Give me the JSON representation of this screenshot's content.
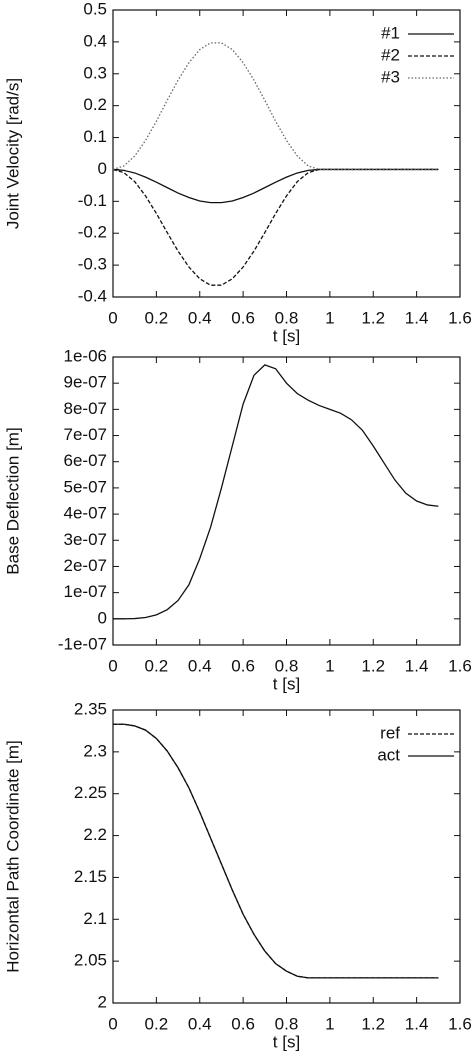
{
  "chart_data": [
    {
      "type": "line",
      "xlabel": "t [s]",
      "ylabel": "Joint Velocity [rad/s]",
      "x": [
        0,
        0.05,
        0.1,
        0.15,
        0.2,
        0.25,
        0.3,
        0.35,
        0.4,
        0.45,
        0.5,
        0.55,
        0.6,
        0.65,
        0.7,
        0.75,
        0.8,
        0.85,
        0.9,
        0.95,
        1.0,
        1.05,
        1.1,
        1.15,
        1.2,
        1.25,
        1.3,
        1.35,
        1.4,
        1.45,
        1.5
      ],
      "series": [
        {
          "name": "#1",
          "color": "#111111",
          "dash": "solid",
          "values": [
            0,
            -0.003,
            -0.011,
            -0.024,
            -0.04,
            -0.057,
            -0.074,
            -0.088,
            -0.099,
            -0.104,
            -0.104,
            -0.099,
            -0.088,
            -0.074,
            -0.057,
            -0.04,
            -0.024,
            -0.011,
            -0.003,
            0,
            0,
            0,
            0,
            0,
            0,
            0,
            0,
            0,
            0,
            0,
            0
          ]
        },
        {
          "name": "#2",
          "color": "#111111",
          "dash": "dashed",
          "values": [
            0,
            -0.01,
            -0.038,
            -0.083,
            -0.138,
            -0.198,
            -0.256,
            -0.306,
            -0.343,
            -0.363,
            -0.363,
            -0.343,
            -0.306,
            -0.256,
            -0.198,
            -0.138,
            -0.083,
            -0.038,
            -0.01,
            0,
            0,
            0,
            0,
            0,
            0,
            0,
            0,
            0,
            0,
            0,
            0
          ]
        },
        {
          "name": "#3",
          "color": "#666666",
          "dash": "dotted",
          "values": [
            0,
            0.011,
            0.042,
            0.091,
            0.151,
            0.217,
            0.28,
            0.335,
            0.376,
            0.397,
            0.397,
            0.376,
            0.335,
            0.28,
            0.217,
            0.151,
            0.091,
            0.042,
            0.011,
            0,
            0,
            0,
            0,
            0,
            0,
            0,
            0,
            0,
            0,
            0,
            0
          ]
        }
      ],
      "xlim": [
        0,
        1.6
      ],
      "xticks": [
        0,
        0.2,
        0.4,
        0.6,
        0.8,
        1,
        1.2,
        1.4,
        1.6
      ],
      "ylim": [
        -0.4,
        0.5
      ],
      "yticks": [
        -0.4,
        -0.3,
        -0.2,
        -0.1,
        0,
        0.1,
        0.2,
        0.3,
        0.4,
        0.5
      ],
      "legend": "top-right"
    },
    {
      "type": "line",
      "xlabel": "t [s]",
      "ylabel": "Base Deflection  [m]",
      "x": [
        0,
        0.05,
        0.1,
        0.15,
        0.2,
        0.25,
        0.3,
        0.35,
        0.4,
        0.45,
        0.5,
        0.55,
        0.6,
        0.65,
        0.7,
        0.75,
        0.8,
        0.85,
        0.9,
        0.95,
        1.0,
        1.05,
        1.1,
        1.15,
        1.2,
        1.25,
        1.3,
        1.35,
        1.4,
        1.45,
        1.5
      ],
      "series": [
        {
          "color": "#111111",
          "dash": "solid",
          "values": [
            0,
            0,
            1e-09,
            5e-09,
            1.5e-08,
            3.5e-08,
            7e-08,
            1.3e-07,
            2.3e-07,
            3.5e-07,
            5e-07,
            6.6e-07,
            8.2e-07,
            9.3e-07,
            9.7e-07,
            9.55e-07,
            9e-07,
            8.6e-07,
            8.35e-07,
            8.15e-07,
            8e-07,
            7.85e-07,
            7.6e-07,
            7.2e-07,
            6.6e-07,
            5.95e-07,
            5.3e-07,
            4.8e-07,
            4.5e-07,
            4.35e-07,
            4.3e-07
          ]
        }
      ],
      "xlim": [
        0,
        1.6
      ],
      "xticks": [
        0,
        0.2,
        0.4,
        0.6,
        0.8,
        1,
        1.2,
        1.4,
        1.6
      ],
      "ylim": [
        -1e-07,
        1e-06
      ],
      "yticks": [
        {
          "value": -1e-07,
          "label": "-1e-07"
        },
        0,
        {
          "value": 1e-07,
          "label": "1e-07"
        },
        {
          "value": 2e-07,
          "label": "2e-07"
        },
        {
          "value": 3e-07,
          "label": "3e-07"
        },
        {
          "value": 4e-07,
          "label": "4e-07"
        },
        {
          "value": 5e-07,
          "label": "5e-07"
        },
        {
          "value": 6e-07,
          "label": "6e-07"
        },
        {
          "value": 7e-07,
          "label": "7e-07"
        },
        {
          "value": 8e-07,
          "label": "8e-07"
        },
        {
          "value": 9e-07,
          "label": "9e-07"
        },
        {
          "value": 1e-06,
          "label": "1e-06"
        }
      ]
    },
    {
      "type": "line",
      "xlabel": "t [s]",
      "ylabel": "Horizontal Path Coordinate  [m]",
      "x": [
        0,
        0.05,
        0.1,
        0.15,
        0.2,
        0.25,
        0.3,
        0.35,
        0.4,
        0.45,
        0.5,
        0.55,
        0.6,
        0.65,
        0.7,
        0.75,
        0.8,
        0.85,
        0.9,
        0.95,
        1.0,
        1.05,
        1.1,
        1.15,
        1.2,
        1.25,
        1.3,
        1.35,
        1.4,
        1.45,
        1.5
      ],
      "series": [
        {
          "name": "ref",
          "color": "#111111",
          "dash": "dashed",
          "values": [
            2.333,
            2.333,
            2.331,
            2.326,
            2.316,
            2.301,
            2.281,
            2.257,
            2.228,
            2.197,
            2.166,
            2.135,
            2.106,
            2.082,
            2.062,
            2.047,
            2.038,
            2.032,
            2.03,
            2.03,
            2.03,
            2.03,
            2.03,
            2.03,
            2.03,
            2.03,
            2.03,
            2.03,
            2.03,
            2.03,
            2.03
          ]
        },
        {
          "name": "act",
          "color": "#111111",
          "dash": "solid",
          "values": [
            2.333,
            2.333,
            2.331,
            2.326,
            2.316,
            2.301,
            2.281,
            2.257,
            2.228,
            2.197,
            2.166,
            2.135,
            2.106,
            2.082,
            2.062,
            2.047,
            2.038,
            2.032,
            2.03,
            2.03,
            2.03,
            2.03,
            2.03,
            2.03,
            2.03,
            2.03,
            2.03,
            2.03,
            2.03,
            2.03,
            2.03
          ]
        }
      ],
      "xlim": [
        0,
        1.6
      ],
      "xticks": [
        0,
        0.2,
        0.4,
        0.6,
        0.8,
        1,
        1.2,
        1.4,
        1.6
      ],
      "ylim": [
        2,
        2.35
      ],
      "yticks": [
        2,
        2.05,
        2.1,
        2.15,
        2.2,
        2.25,
        2.3,
        2.35
      ],
      "legend": "top-right"
    }
  ]
}
